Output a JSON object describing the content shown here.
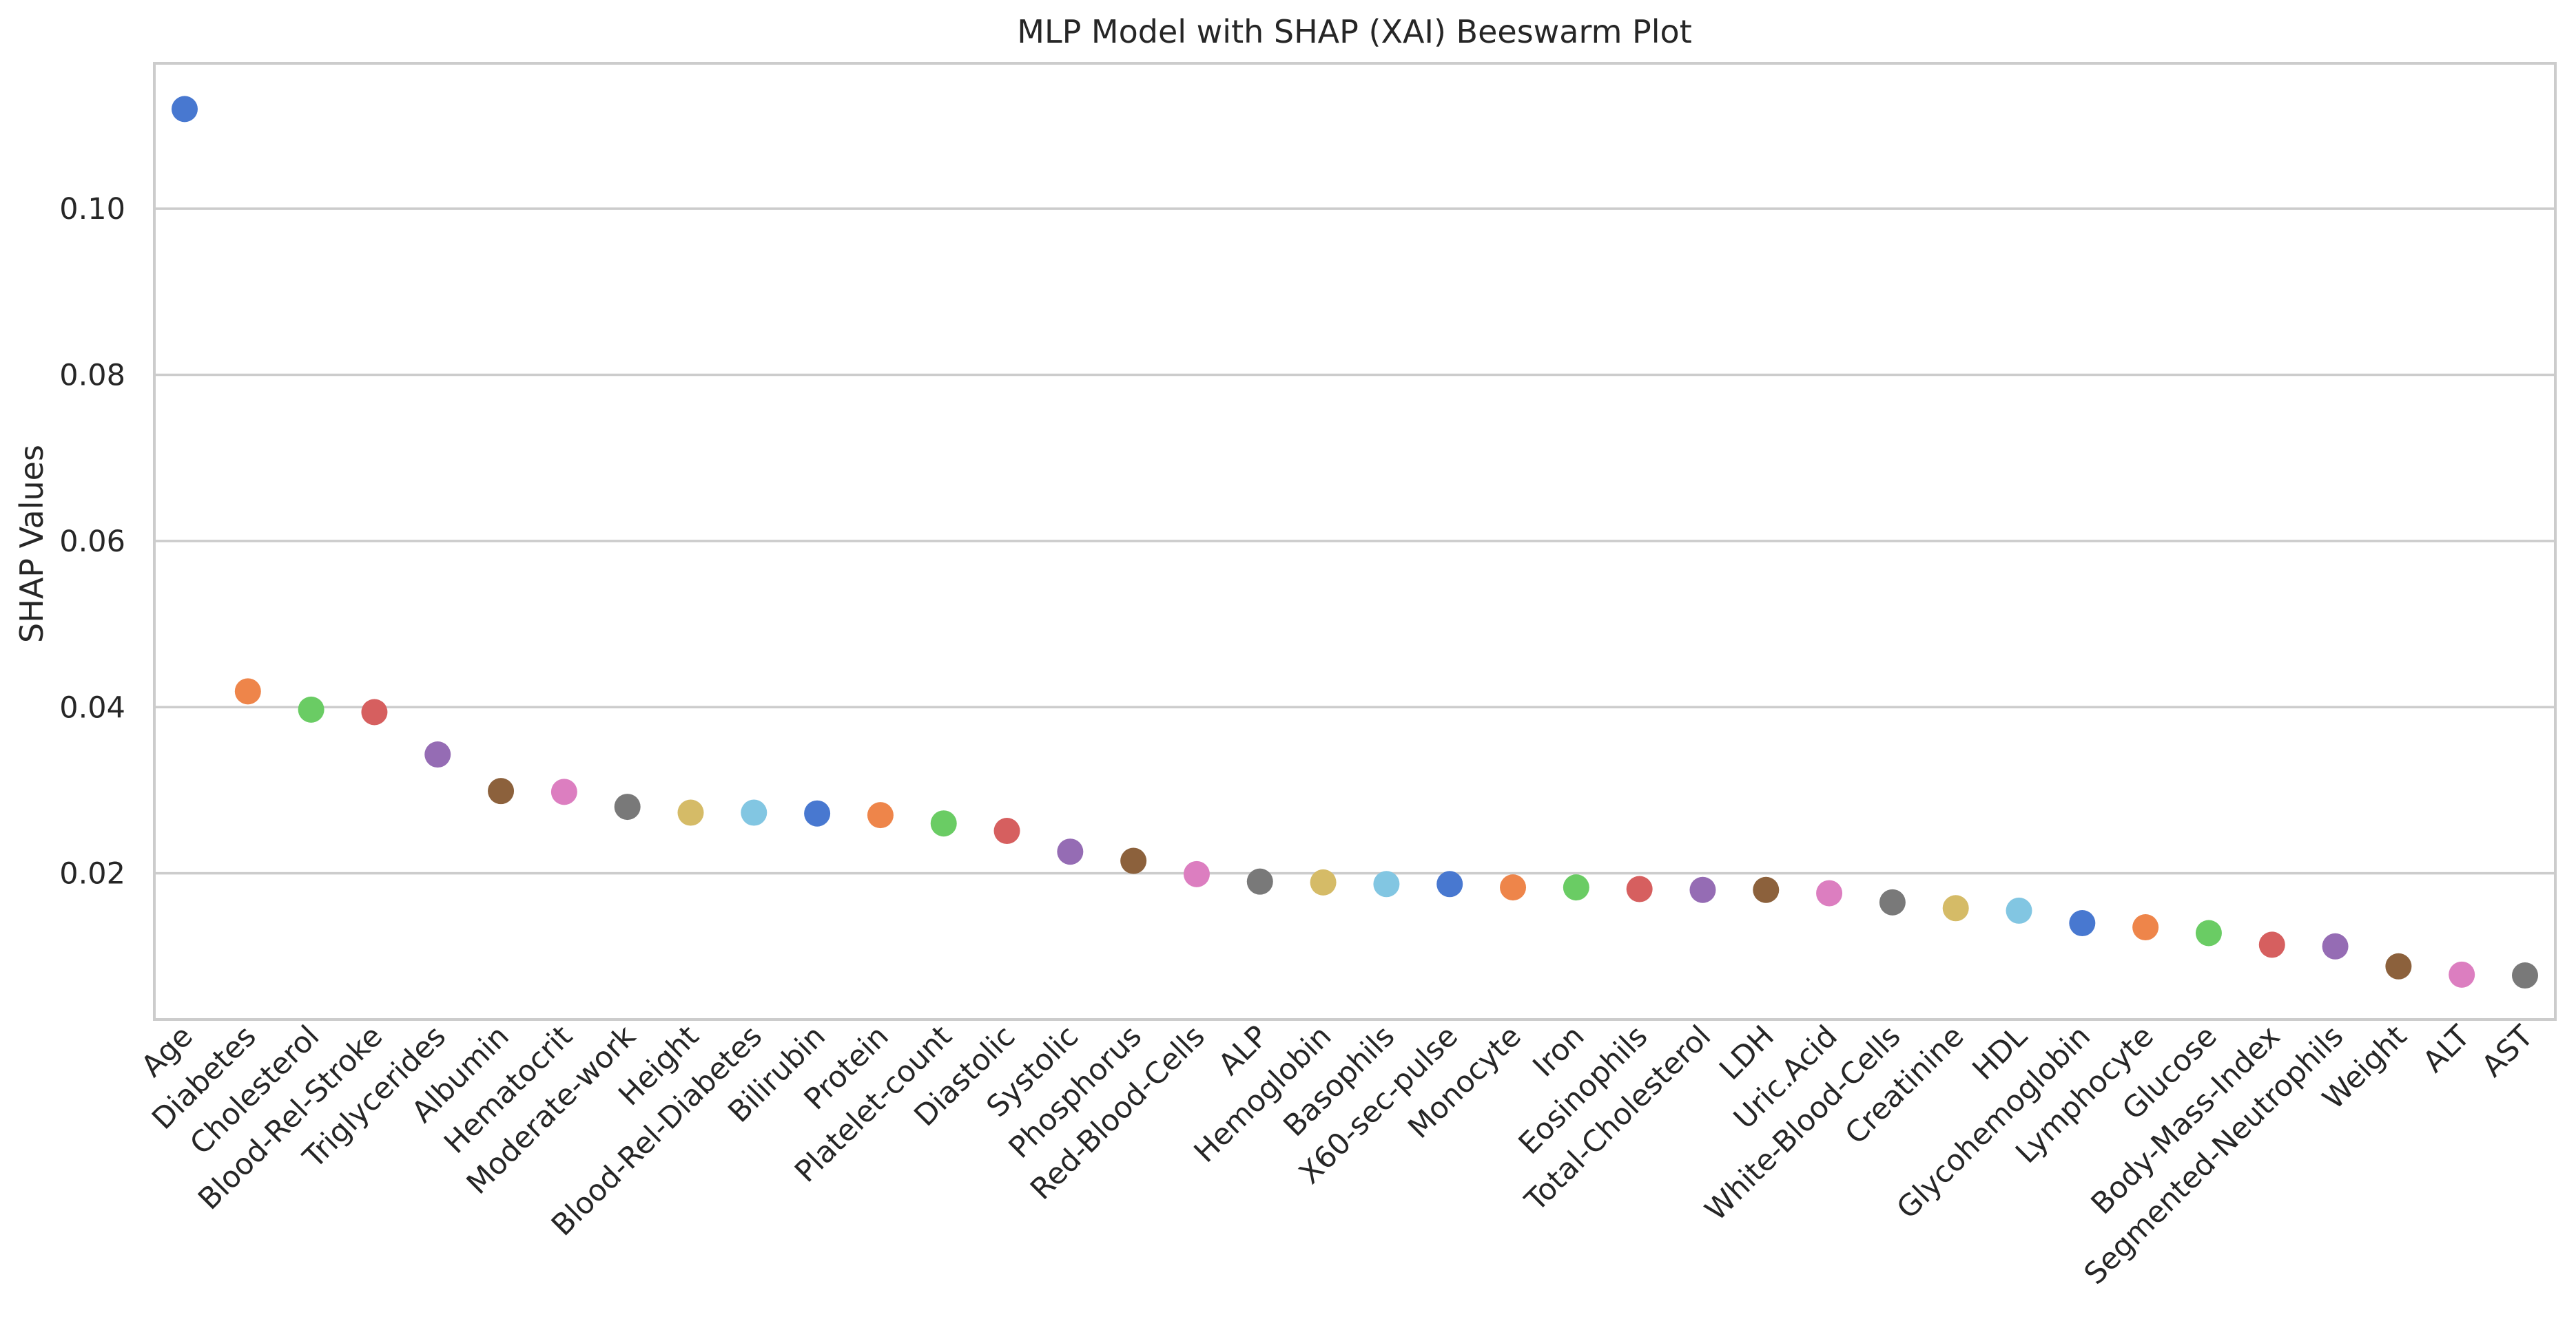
{
  "chart_data": {
    "type": "scatter",
    "title": "MLP Model with SHAP (XAI) Beeswarm Plot",
    "xlabel": "",
    "ylabel": "SHAP Values",
    "ylim": [
      0.0024,
      0.1175
    ],
    "yticks": [
      "0.02",
      "0.04",
      "0.06",
      "0.08",
      "0.10"
    ],
    "grid": "horizontal",
    "categories": [
      "Age",
      "Diabetes",
      "Cholesterol",
      "Blood-Rel-Stroke",
      "Triglycerides",
      "Albumin",
      "Hematocrit",
      "Moderate-work",
      "Height",
      "Blood-Rel-Diabetes",
      "Bilirubin",
      "Protein",
      "Platelet-count",
      "Diastolic",
      "Systolic",
      "Phosphorus",
      "Red-Blood-Cells",
      "ALP",
      "Hemoglobin",
      "Basophils",
      "X60-sec-pulse",
      "Monocyte",
      "Iron",
      "Eosinophils",
      "Total-Cholesterol",
      "LDH",
      "Uric.Acid",
      "White-Blood-Cells",
      "Creatinine",
      "HDL",
      "Glycohemoglobin",
      "Lymphocyte",
      "Glucose",
      "Body-Mass-Index",
      "Segmented-Neutrophils",
      "Weight",
      "ALT",
      "AST"
    ],
    "values": [
      0.112,
      0.0419,
      0.0397,
      0.0394,
      0.0343,
      0.0299,
      0.0298,
      0.028,
      0.0273,
      0.0273,
      0.0272,
      0.027,
      0.026,
      0.0251,
      0.0226,
      0.0215,
      0.0199,
      0.019,
      0.0189,
      0.0187,
      0.0187,
      0.0183,
      0.0183,
      0.0181,
      0.018,
      0.018,
      0.0176,
      0.0165,
      0.0158,
      0.0155,
      0.014,
      0.0135,
      0.0128,
      0.0114,
      0.0112,
      0.0088,
      0.0078,
      0.0077
    ],
    "palette": [
      "#4878d0",
      "#ee854a",
      "#6acc64",
      "#d65f5f",
      "#956cb4",
      "#8c613c",
      "#dc7ec0",
      "#797979",
      "#d5bb67",
      "#82c6e2"
    ],
    "colors": {
      "grid": "#cccccc",
      "frame": "#cccccc",
      "text": "#262626"
    }
  }
}
